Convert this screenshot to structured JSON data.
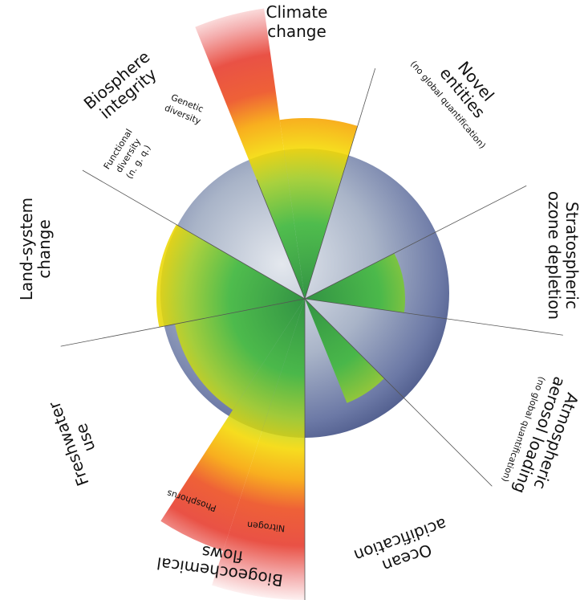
{
  "boundaries": {
    "climate": {
      "title": [
        "Climate",
        "change"
      ]
    },
    "novel": {
      "title": [
        "Novel",
        "entities"
      ],
      "note": "(no global quantification)"
    },
    "ozone": {
      "title": [
        "Stratospheric",
        "ozone depletion"
      ]
    },
    "aerosol": {
      "title": [
        "Atmospheric",
        "aerosol loading"
      ],
      "note": "(no global quantification)"
    },
    "ocean": {
      "title": [
        "Ocean",
        "acidification"
      ]
    },
    "biogeochemical": {
      "title": [
        "Biogeochemical",
        "flows"
      ],
      "nitrogen": "Nitrogen",
      "phosphorus": "Phosphorus"
    },
    "freshwater": {
      "title": [
        "Freshwater",
        "use"
      ]
    },
    "land": {
      "title": [
        "Land-system",
        "change"
      ]
    },
    "biosphere": {
      "title": [
        "Biosphere",
        "integrity"
      ],
      "genetic": [
        "Genetic",
        "diversity"
      ],
      "functional": [
        "Functional",
        "diversity",
        "(n. g. q.)"
      ]
    }
  }
}
